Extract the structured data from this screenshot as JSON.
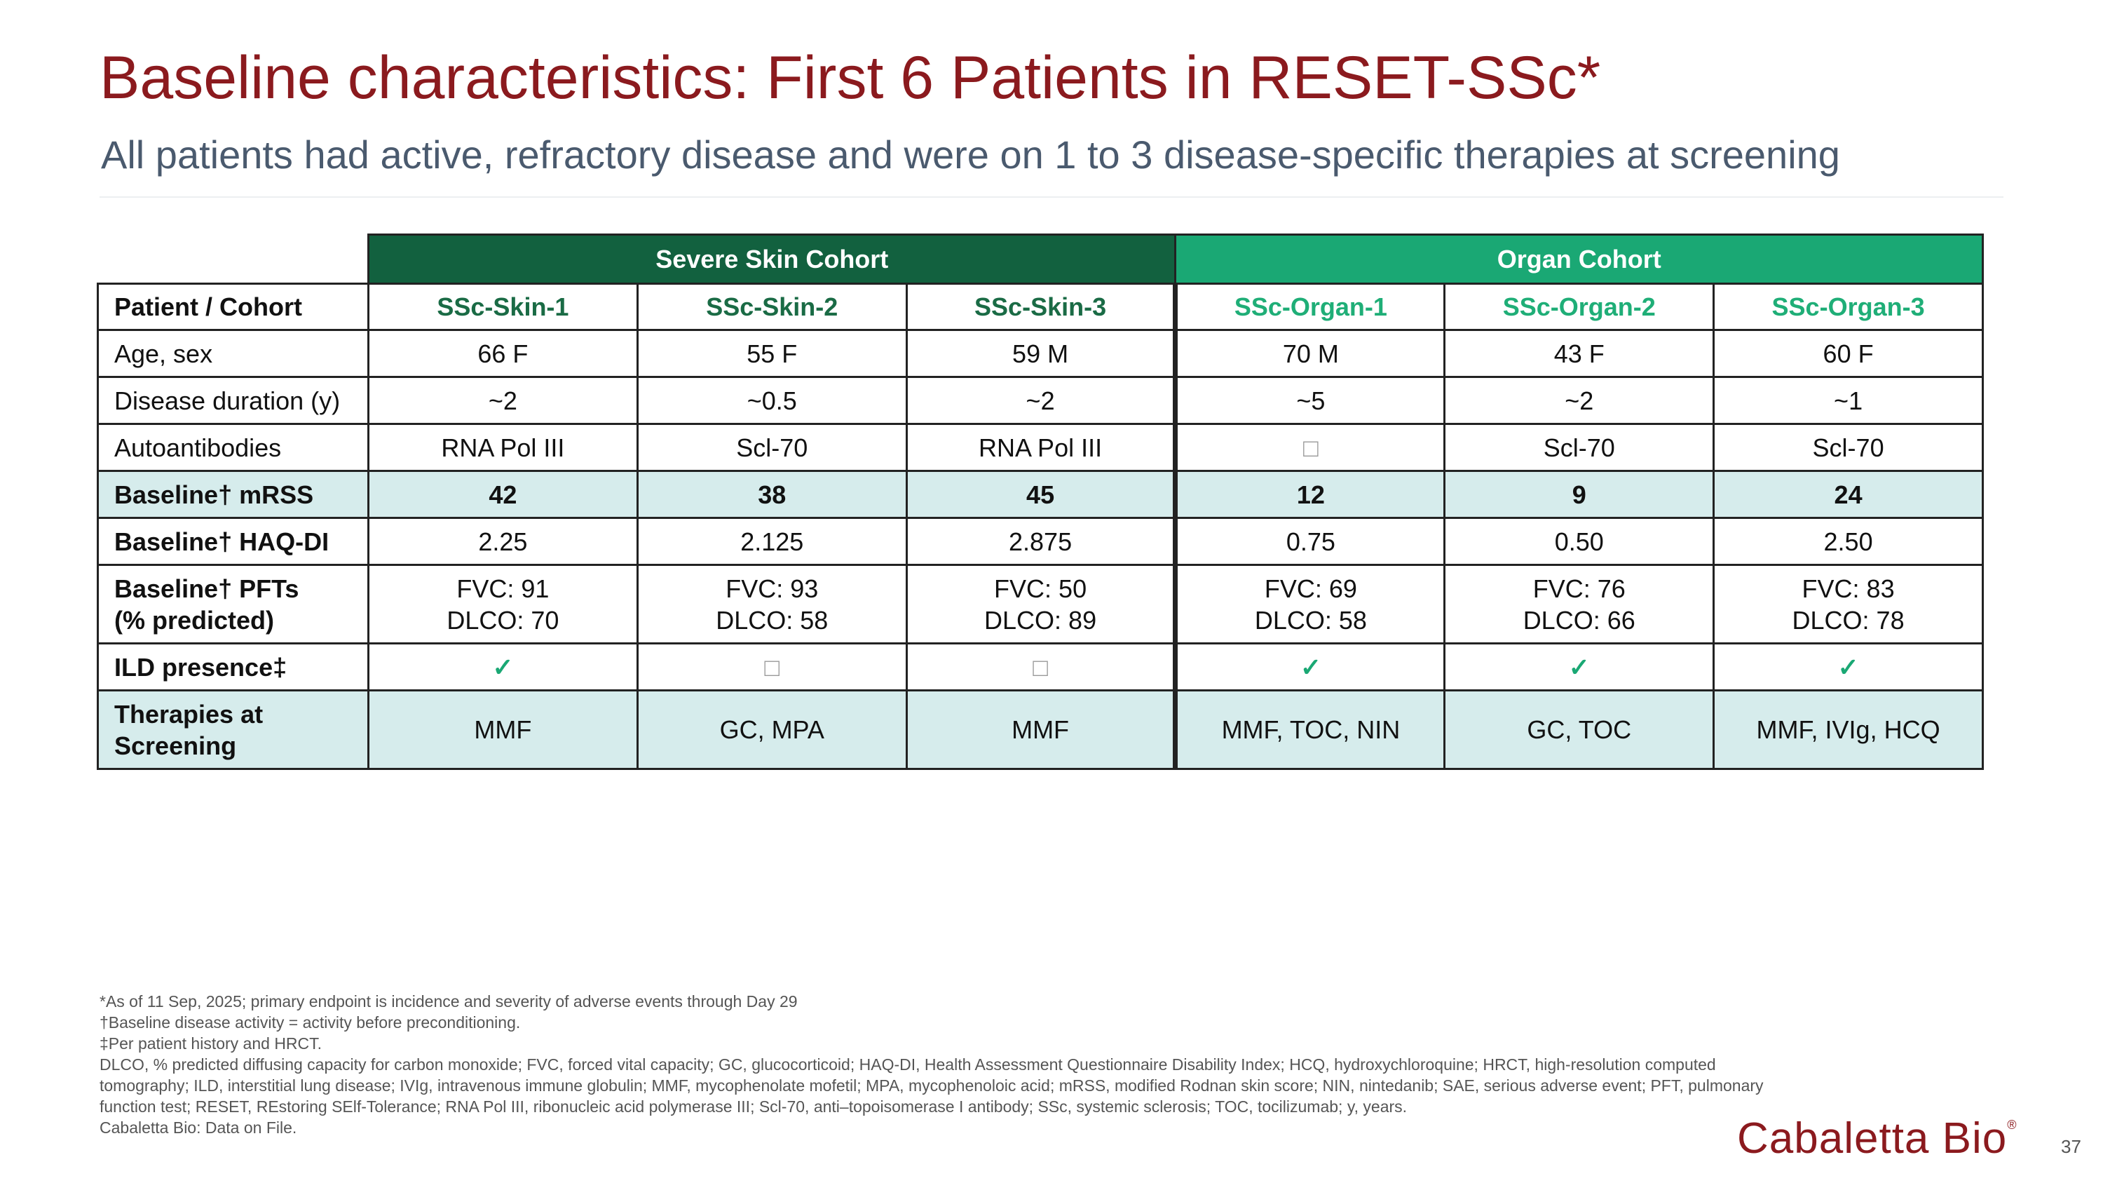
{
  "header": {
    "title": "Baseline characteristics: First 6 Patients in RESET-SSc*",
    "subtitle": "All patients had active, refractory disease and were on 1 to 3 disease-specific therapies at screening"
  },
  "table": {
    "groups": [
      "Severe Skin Cohort",
      "Organ Cohort"
    ],
    "columns": [
      "Patient / Cohort",
      "SSc-Skin-1",
      "SSc-Skin-2",
      "SSc-Skin-3",
      "SSc-Organ-1",
      "SSc-Organ-2",
      "SSc-Organ-3"
    ],
    "rows": [
      [
        "Age, sex",
        "66 F",
        "55 F",
        "59 M",
        "70 M",
        "43 F",
        "60 F"
      ],
      [
        "Disease duration (y)",
        "~2",
        "~0.5",
        "~2",
        "~5",
        "~2",
        "~1"
      ],
      [
        "Autoantibodies",
        "RNA Pol III",
        "Scl-70",
        "RNA Pol III",
        "□",
        "Scl-70",
        "Scl-70"
      ],
      [
        "Baseline† mRSS",
        "42",
        "38",
        "45",
        "12",
        "9",
        "24"
      ],
      [
        "Baseline† HAQ-DI",
        "2.25",
        "2.125",
        "2.875",
        "0.75",
        "0.50",
        "2.50"
      ],
      [
        "Baseline† PFTs\n(% predicted)",
        "FVC: 91\nDLCO: 70",
        "FVC: 93\nDLCO: 58",
        "FVC: 50\nDLCO: 89",
        "FVC: 69\nDLCO: 58",
        "FVC: 76\nDLCO: 66",
        "FVC: 83\nDLCO: 78"
      ],
      [
        "ILD presence‡",
        "✓",
        "□",
        "□",
        "✓",
        "✓",
        "✓"
      ],
      [
        "Therapies at\nScreening",
        "MMF",
        "GC, MPA",
        "MMF",
        "MMF, TOC, NIN",
        "GC, TOC",
        "MMF, IVIg, HCQ"
      ]
    ]
  },
  "footnotes": [
    "*As of 11 Sep, 2025; primary endpoint is incidence and severity of adverse events through Day 29",
    "†Baseline disease activity = activity before preconditioning.",
    "‡Per patient history and HRCT.",
    "DLCO, % predicted diffusing capacity for carbon monoxide; FVC, forced vital capacity; GC, glucocorticoid; HAQ-DI, Health Assessment Questionnaire Disability Index; HCQ, hydroxychloroquine; HRCT, high-resolution computed tomography; ILD, interstitial lung disease; IVIg, intravenous immune globulin; MMF, mycophenolate mofetil; MPA, mycophenoloic acid; mRSS, modified Rodnan skin score; NIN, nintedanib; SAE, serious adverse event; PFT, pulmonary function test;  RESET, REstoring SElf-Tolerance; RNA Pol III, ribonucleic acid polymerase III; Scl-70, anti–topoisomerase I antibody; SSc, systemic sclerosis; TOC, tocilizumab; y, years.",
    "Cabaletta Bio: Data on File."
  ],
  "logo": "Cabaletta Bio",
  "logo_mark": "®",
  "page_number": "37"
}
